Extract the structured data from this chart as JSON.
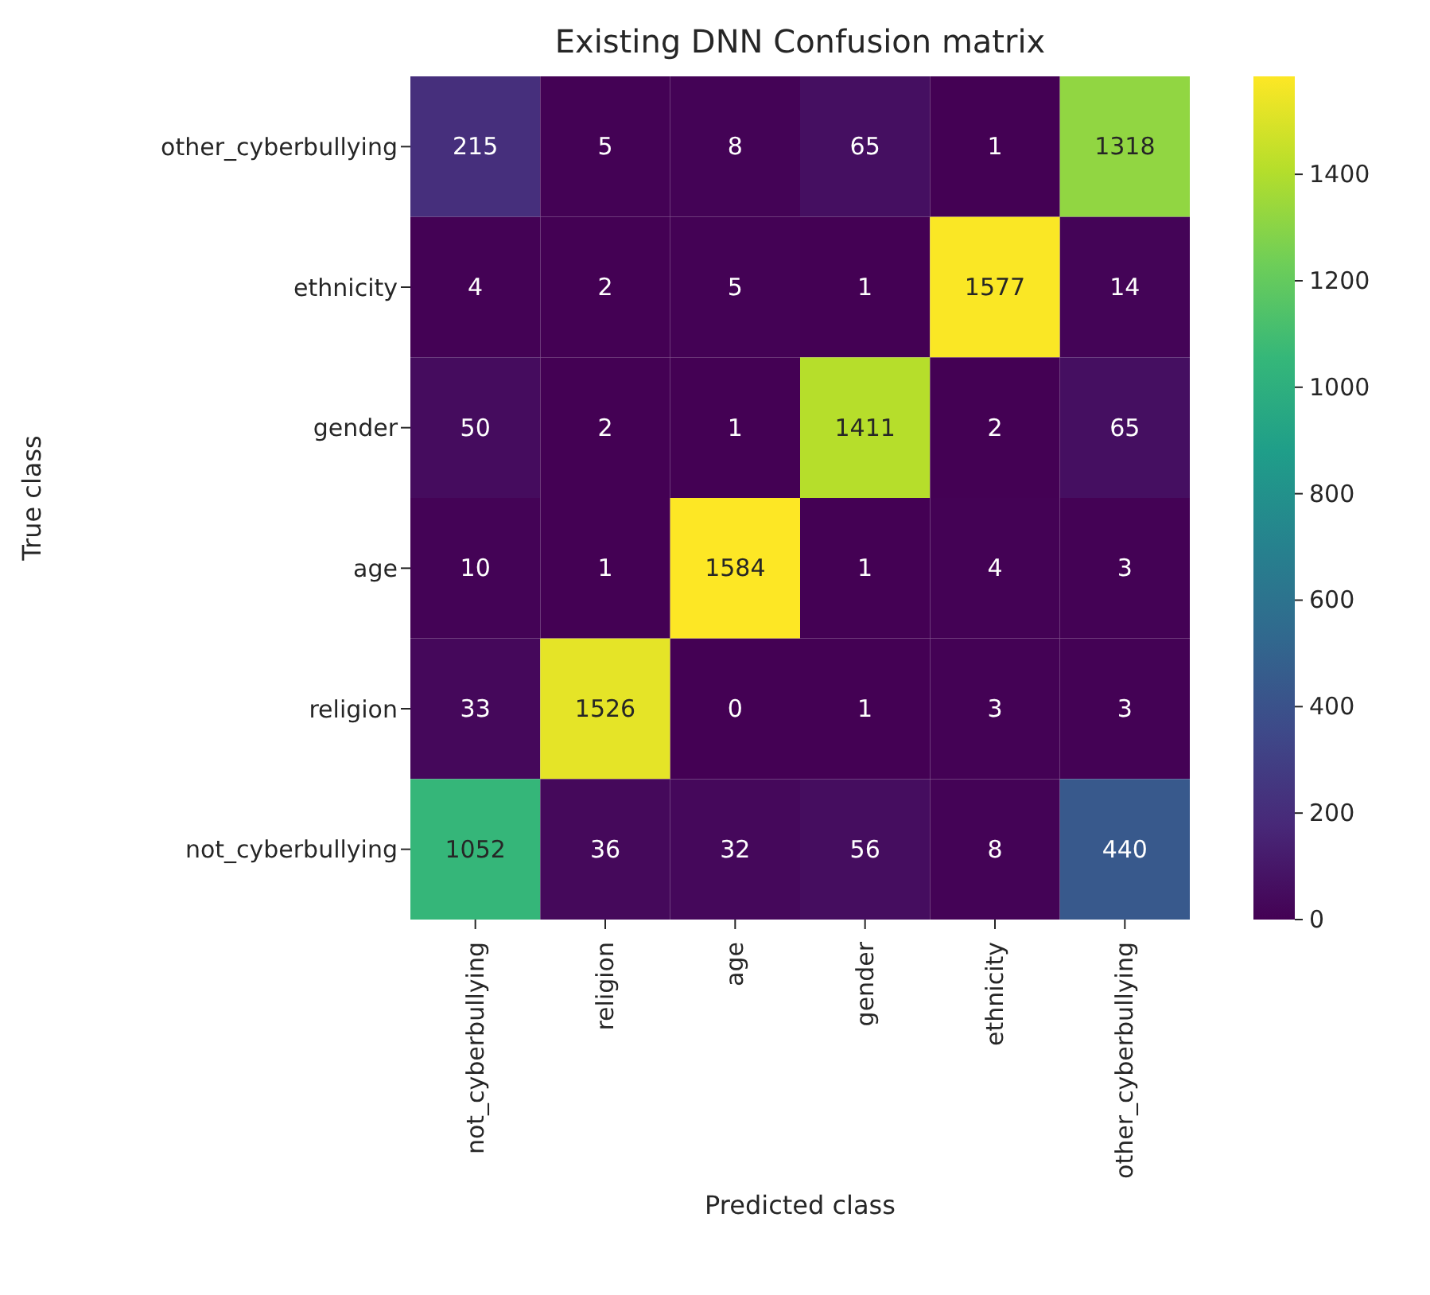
{
  "chart_data": {
    "type": "heatmap",
    "title": "Existing DNN Confusion matrix",
    "xlabel": "Predicted class",
    "ylabel": "True class",
    "categories": [
      "not_cyberbullying",
      "religion",
      "age",
      "gender",
      "ethnicity",
      "other_cyberbullying"
    ],
    "y_categories": [
      "other_cyberbullying",
      "ethnicity",
      "gender",
      "age",
      "religion",
      "not_cyberbullying"
    ],
    "cells": [
      [
        215,
        5,
        8,
        65,
        1,
        1318
      ],
      [
        4,
        2,
        5,
        1,
        1577,
        14
      ],
      [
        50,
        2,
        1,
        1411,
        2,
        65
      ],
      [
        10,
        1,
        1584,
        1,
        4,
        3
      ],
      [
        33,
        1526,
        0,
        1,
        3,
        3
      ],
      [
        1052,
        36,
        32,
        56,
        8,
        440
      ]
    ],
    "data_labels": true,
    "clim": [
      0,
      1584
    ],
    "cticks": [
      0,
      200,
      400,
      600,
      800,
      1000,
      1200,
      1400
    ]
  }
}
